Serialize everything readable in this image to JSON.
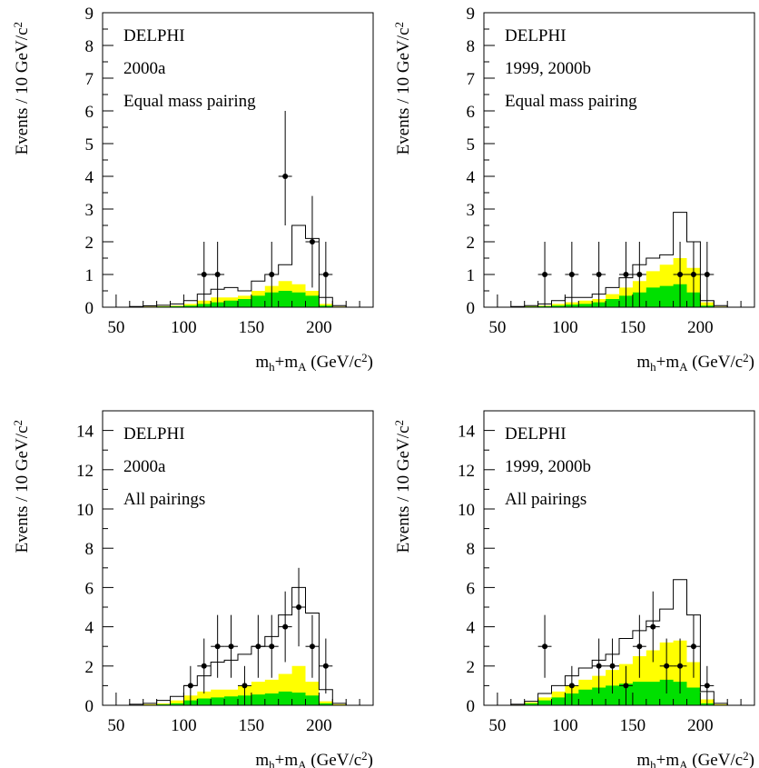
{
  "colors": {
    "total_bg": "#000000",
    "yellow": "#ffff00",
    "green": "#00e000",
    "data": "#000000"
  },
  "chart_data": [
    {
      "type": "histogram",
      "annotations": [
        "DELPHI",
        "2000a",
        "Equal mass pairing"
      ],
      "xlabel": {
        "m": "m",
        "h": "h",
        "plus": "+m",
        "A": "A",
        "unit": " (GeV/c",
        "sq": "2",
        "close": ")"
      },
      "ylabel": {
        "text": "Events / 10 GeV/c",
        "sq": "2"
      },
      "xlim": [
        40,
        240
      ],
      "ylim": [
        0,
        9
      ],
      "xticks": [
        50,
        100,
        150,
        200
      ],
      "yticks": [
        0,
        1,
        2,
        3,
        4,
        5,
        6,
        7,
        8,
        9
      ],
      "bin_edges": [
        40,
        50,
        60,
        70,
        80,
        90,
        100,
        110,
        120,
        130,
        140,
        150,
        160,
        170,
        180,
        190,
        200,
        210,
        220,
        230,
        240
      ],
      "total_bg": [
        0,
        0,
        0.02,
        0.04,
        0.06,
        0.1,
        0.2,
        0.4,
        0.55,
        0.6,
        0.5,
        0.8,
        1.0,
        1.3,
        2.5,
        2.1,
        0.3,
        0.05,
        0,
        0
      ],
      "yellow_bg": [
        0,
        0,
        0.01,
        0.02,
        0.03,
        0.05,
        0.1,
        0.2,
        0.3,
        0.3,
        0.35,
        0.5,
        0.65,
        0.8,
        0.7,
        0.5,
        0.1,
        0.02,
        0,
        0
      ],
      "green_bg": [
        0,
        0,
        0,
        0.01,
        0.02,
        0.03,
        0.05,
        0.1,
        0.15,
        0.2,
        0.25,
        0.35,
        0.45,
        0.5,
        0.45,
        0.35,
        0.05,
        0,
        0,
        0
      ],
      "data_points": [
        {
          "x": 115,
          "y": 1,
          "lo": 0,
          "hi": 2
        },
        {
          "x": 125,
          "y": 1,
          "lo": 0,
          "hi": 2
        },
        {
          "x": 165,
          "y": 1,
          "lo": 0,
          "hi": 2
        },
        {
          "x": 175,
          "y": 4,
          "lo": 2.5,
          "hi": 6
        },
        {
          "x": 195,
          "y": 2,
          "lo": 0.6,
          "hi": 3.4
        },
        {
          "x": 205,
          "y": 1,
          "lo": 0,
          "hi": 2
        }
      ]
    },
    {
      "type": "histogram",
      "annotations": [
        "DELPHI",
        "1999, 2000b",
        "Equal mass pairing"
      ],
      "xlabel": {
        "m": "m",
        "h": "h",
        "plus": "+m",
        "A": "A",
        "unit": " (GeV/c",
        "sq": "2",
        "close": ")"
      },
      "ylabel": {
        "text": "Events / 10 GeV/c",
        "sq": "2"
      },
      "xlim": [
        40,
        240
      ],
      "ylim": [
        0,
        9
      ],
      "xticks": [
        50,
        100,
        150,
        200
      ],
      "yticks": [
        0,
        1,
        2,
        3,
        4,
        5,
        6,
        7,
        8,
        9
      ],
      "bin_edges": [
        40,
        50,
        60,
        70,
        80,
        90,
        100,
        110,
        120,
        130,
        140,
        150,
        160,
        170,
        180,
        190,
        200,
        210,
        220,
        230,
        240
      ],
      "total_bg": [
        0,
        0,
        0.02,
        0.05,
        0.1,
        0.2,
        0.3,
        0.3,
        0.4,
        0.6,
        0.9,
        1.3,
        1.5,
        1.6,
        2.9,
        2.0,
        0.2,
        0.05,
        0,
        0
      ],
      "yellow_bg": [
        0,
        0,
        0.01,
        0.03,
        0.05,
        0.1,
        0.15,
        0.2,
        0.25,
        0.4,
        0.6,
        0.8,
        1.1,
        1.3,
        1.5,
        1.2,
        0.15,
        0.02,
        0,
        0
      ],
      "green_bg": [
        0,
        0,
        0,
        0.02,
        0.03,
        0.05,
        0.08,
        0.1,
        0.15,
        0.25,
        0.35,
        0.45,
        0.6,
        0.65,
        0.7,
        0.45,
        0.05,
        0,
        0,
        0
      ],
      "data_points": [
        {
          "x": 85,
          "y": 1,
          "lo": 0,
          "hi": 2
        },
        {
          "x": 105,
          "y": 1,
          "lo": 0,
          "hi": 2
        },
        {
          "x": 125,
          "y": 1,
          "lo": 0,
          "hi": 2
        },
        {
          "x": 145,
          "y": 1,
          "lo": 0,
          "hi": 2
        },
        {
          "x": 155,
          "y": 1,
          "lo": 0,
          "hi": 2
        },
        {
          "x": 185,
          "y": 1,
          "lo": 0,
          "hi": 2
        },
        {
          "x": 195,
          "y": 1,
          "lo": 0,
          "hi": 2
        },
        {
          "x": 205,
          "y": 1,
          "lo": 0,
          "hi": 2
        }
      ]
    },
    {
      "type": "histogram",
      "annotations": [
        "DELPHI",
        "2000a",
        "All pairings"
      ],
      "xlabel": {
        "m": "m",
        "h": "h",
        "plus": "+m",
        "A": "A",
        "unit": " (GeV/c",
        "sq": "2",
        "close": ")"
      },
      "ylabel": {
        "text": "Events / 10 GeV/c",
        "sq": "2"
      },
      "xlim": [
        40,
        240
      ],
      "ylim": [
        0,
        15
      ],
      "xticks": [
        50,
        100,
        150,
        200
      ],
      "yticks": [
        0,
        2,
        4,
        6,
        8,
        10,
        12,
        14
      ],
      "bin_edges": [
        40,
        50,
        60,
        70,
        80,
        90,
        100,
        110,
        120,
        130,
        140,
        150,
        160,
        170,
        180,
        190,
        200,
        210,
        220,
        230,
        240
      ],
      "total_bg": [
        0,
        0,
        0.05,
        0.1,
        0.25,
        0.45,
        1.0,
        1.5,
        2.2,
        2.3,
        2.6,
        3.0,
        3.5,
        4.6,
        6.0,
        4.7,
        0.8,
        0.1,
        0,
        0
      ],
      "yellow_bg": [
        0,
        0,
        0.02,
        0.05,
        0.1,
        0.25,
        0.5,
        0.7,
        0.8,
        0.8,
        1.0,
        1.2,
        1.3,
        1.6,
        2.0,
        1.2,
        0.2,
        0.05,
        0,
        0
      ],
      "green_bg": [
        0,
        0,
        0,
        0.02,
        0.05,
        0.1,
        0.25,
        0.35,
        0.4,
        0.45,
        0.5,
        0.55,
        0.6,
        0.7,
        0.65,
        0.5,
        0.1,
        0,
        0,
        0
      ],
      "data_points": [
        {
          "x": 105,
          "y": 1,
          "lo": 0,
          "hi": 2
        },
        {
          "x": 115,
          "y": 2,
          "lo": 0.6,
          "hi": 3.4
        },
        {
          "x": 125,
          "y": 3,
          "lo": 1.4,
          "hi": 4.6
        },
        {
          "x": 135,
          "y": 3,
          "lo": 1.4,
          "hi": 4.6
        },
        {
          "x": 145,
          "y": 1,
          "lo": 0,
          "hi": 2
        },
        {
          "x": 155,
          "y": 3,
          "lo": 1.4,
          "hi": 4.6
        },
        {
          "x": 165,
          "y": 3,
          "lo": 1.4,
          "hi": 4.6
        },
        {
          "x": 175,
          "y": 4,
          "lo": 2.2,
          "hi": 5.8
        },
        {
          "x": 185,
          "y": 5,
          "lo": 3.0,
          "hi": 7.0
        },
        {
          "x": 195,
          "y": 3,
          "lo": 1.4,
          "hi": 4.6
        },
        {
          "x": 205,
          "y": 2,
          "lo": 0.6,
          "hi": 3.4
        }
      ]
    },
    {
      "type": "histogram",
      "annotations": [
        "DELPHI",
        "1999, 2000b",
        "All pairings"
      ],
      "xlabel": {
        "m": "m",
        "h": "h",
        "plus": "+m",
        "A": "A",
        "unit": " (GeV/c",
        "sq": "2",
        "close": ")"
      },
      "ylabel": {
        "text": "Events / 10 GeV/c",
        "sq": "2"
      },
      "xlim": [
        40,
        240
      ],
      "ylim": [
        0,
        15
      ],
      "xticks": [
        50,
        100,
        150,
        200
      ],
      "yticks": [
        0,
        2,
        4,
        6,
        8,
        10,
        12,
        14
      ],
      "bin_edges": [
        40,
        50,
        60,
        70,
        80,
        90,
        100,
        110,
        120,
        130,
        140,
        150,
        160,
        170,
        180,
        190,
        200,
        210,
        220,
        230,
        240
      ],
      "total_bg": [
        0,
        0,
        0.05,
        0.2,
        0.6,
        1.0,
        1.5,
        1.9,
        2.3,
        2.6,
        3.4,
        3.8,
        4.3,
        4.9,
        6.4,
        4.6,
        0.7,
        0.1,
        0,
        0
      ],
      "yellow_bg": [
        0,
        0,
        0.03,
        0.15,
        0.4,
        0.7,
        1.0,
        1.3,
        1.5,
        1.8,
        2.1,
        2.5,
        2.8,
        3.2,
        3.3,
        2.2,
        0.3,
        0.05,
        0,
        0
      ],
      "green_bg": [
        0,
        0,
        0.02,
        0.1,
        0.25,
        0.4,
        0.6,
        0.8,
        0.9,
        1.0,
        1.1,
        1.2,
        1.2,
        1.3,
        1.2,
        0.9,
        0.1,
        0,
        0,
        0
      ],
      "data_points": [
        {
          "x": 85,
          "y": 3,
          "lo": 1.4,
          "hi": 4.6
        },
        {
          "x": 105,
          "y": 1,
          "lo": 0,
          "hi": 2
        },
        {
          "x": 125,
          "y": 2,
          "lo": 0.6,
          "hi": 3.4
        },
        {
          "x": 135,
          "y": 2,
          "lo": 0.6,
          "hi": 3.4
        },
        {
          "x": 145,
          "y": 1,
          "lo": 0,
          "hi": 2
        },
        {
          "x": 155,
          "y": 3,
          "lo": 1.4,
          "hi": 4.6
        },
        {
          "x": 165,
          "y": 4,
          "lo": 2.2,
          "hi": 5.8
        },
        {
          "x": 175,
          "y": 2,
          "lo": 0.6,
          "hi": 3.4
        },
        {
          "x": 185,
          "y": 2,
          "lo": 0.6,
          "hi": 3.4
        },
        {
          "x": 195,
          "y": 3,
          "lo": 1.4,
          "hi": 4.6
        },
        {
          "x": 205,
          "y": 1,
          "lo": 0,
          "hi": 2
        }
      ]
    }
  ]
}
